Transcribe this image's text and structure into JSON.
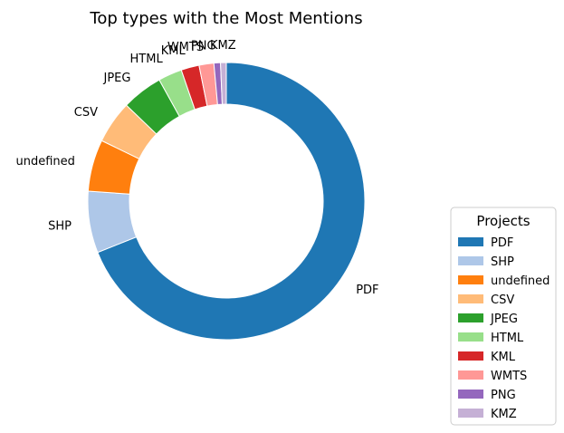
{
  "chart_data": {
    "type": "pie",
    "donut": true,
    "title": "Top types with the Most Mentions",
    "categories": [
      "PDF",
      "SHP",
      "undefined",
      "CSV",
      "JPEG",
      "HTML",
      "KML",
      "WMTS",
      "PNG",
      "KMZ"
    ],
    "values": [
      72.0,
      7.5,
      6.3,
      5.2,
      5.0,
      2.9,
      2.2,
      1.8,
      0.8,
      0.7
    ],
    "colors": [
      "#1f77b4",
      "#aec7e8",
      "#ff7f0e",
      "#ffbb78",
      "#2ca02c",
      "#98df8a",
      "#d62728",
      "#ff9896",
      "#9467bd",
      "#c5b0d5"
    ],
    "start_angle_deg": 90,
    "direction": "clockwise",
    "legend": {
      "title": "Projects",
      "position": "right"
    },
    "small_slice_labels_visible": false
  }
}
